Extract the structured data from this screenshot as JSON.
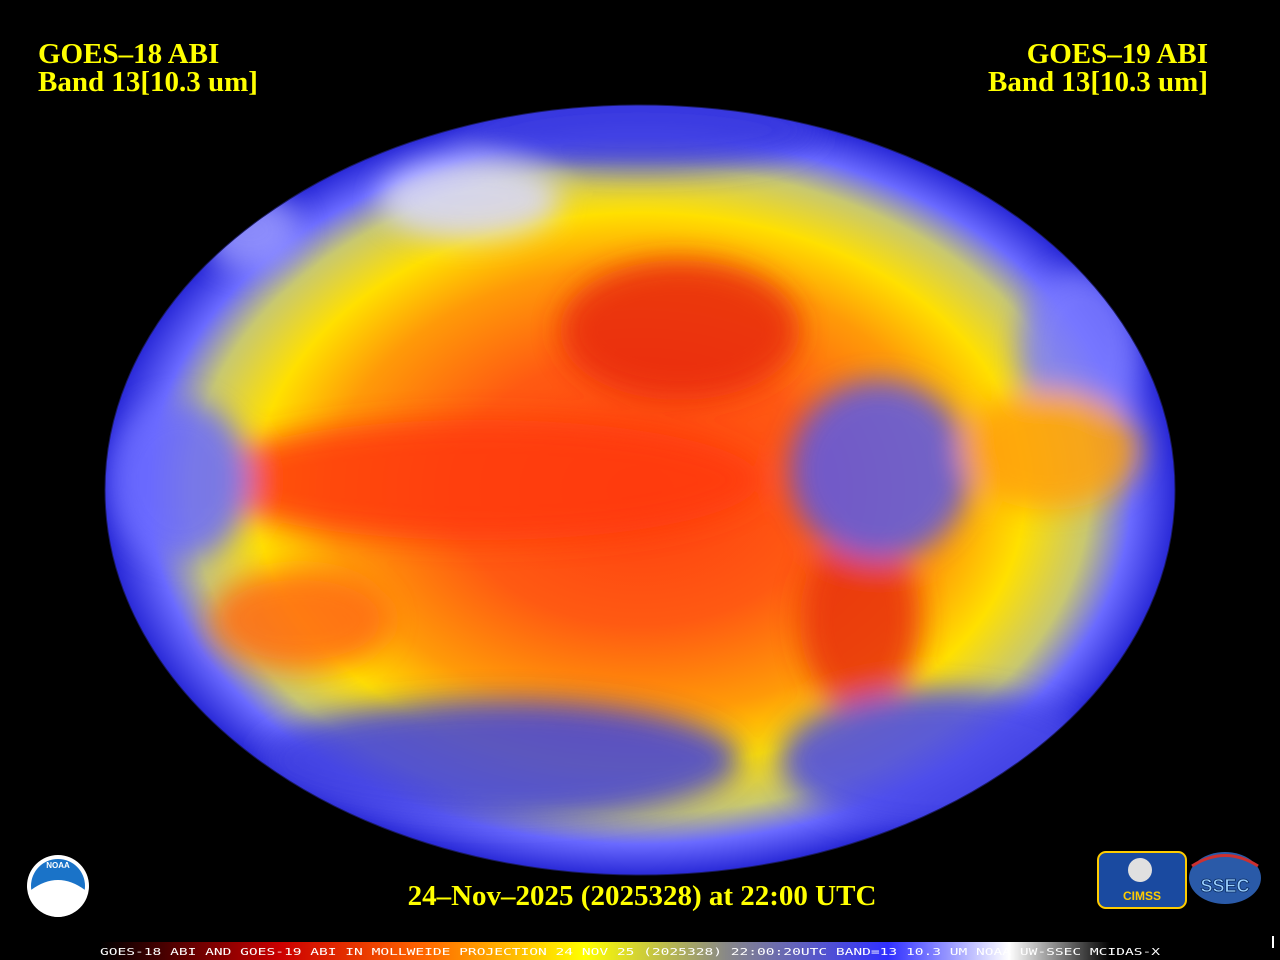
{
  "header": {
    "left": {
      "satellite": "GOES–18 ABI",
      "band": "Band 13[10.3 um]"
    },
    "right": {
      "satellite": "GOES–19 ABI",
      "band": "Band 13[10.3 um]"
    }
  },
  "timestamp": "24–Nov–2025 (2025328) at 22:00 UTC",
  "caption": "GOES-18 ABI AND GOES-19 ABI IN MOLLWEIDE PROJECTION 24 NOV 25 (2025328) 22:00:20UTC BAND=13 10.3 UM NOAA UW-SSEC MCIDAS-X",
  "logos": {
    "noaa": "NOAA",
    "cimss": "CIMSS",
    "ssec": "SSEC"
  }
}
